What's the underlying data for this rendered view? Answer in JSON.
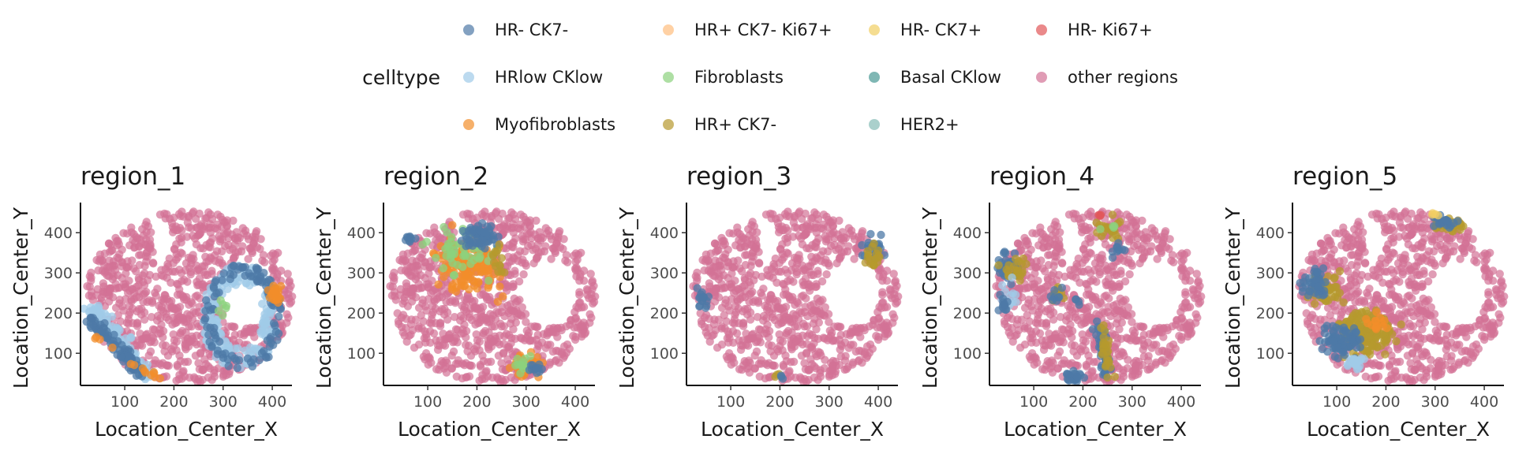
{
  "legend": {
    "title": "celltype",
    "items": [
      {
        "label": "HR- CK7-",
        "color": "#4E79A7"
      },
      {
        "label": "HR+ CK7- Ki67+",
        "color": "#FFBE7D"
      },
      {
        "label": "HR- CK7+",
        "color": "#F1CE63"
      },
      {
        "label": "HR- Ki67+",
        "color": "#E15759"
      },
      {
        "label": "HRlow CKlow",
        "color": "#A0CBE8"
      },
      {
        "label": "Fibroblasts",
        "color": "#8CD17D"
      },
      {
        "label": "Basal CKlow",
        "color": "#499894"
      },
      {
        "label": "other regions",
        "color": "#D37295"
      },
      {
        "label": "Myofibroblasts",
        "color": "#F28E2B"
      },
      {
        "label": "HR+ CK7-",
        "color": "#B6992D"
      },
      {
        "label": "HER2+",
        "color": "#86BCB6"
      }
    ]
  },
  "chart_data": [
    {
      "type": "scatter",
      "title": "region_1",
      "xlabel": "Location_Center_X",
      "ylabel": "Location_Center_Y",
      "xlim": [
        10,
        440
      ],
      "ylim": [
        20,
        475
      ],
      "xticks": [
        100,
        200,
        300,
        400
      ],
      "yticks": [
        100,
        200,
        300,
        400
      ],
      "background_celltype": "other regions",
      "clusters": [
        {
          "celltype": "HRlow CKlow",
          "shape": "ring",
          "cx": 335,
          "cy": 190,
          "rx": 78,
          "ry": 130,
          "inner": 0.6,
          "n": 200
        },
        {
          "celltype": "HR- CK7-",
          "shape": "ring",
          "cx": 340,
          "cy": 190,
          "rx": 80,
          "ry": 132,
          "inner": 0.75,
          "n": 110
        },
        {
          "celltype": "Myofibroblasts",
          "shape": "blob",
          "cx": 405,
          "cy": 250,
          "rx": 22,
          "ry": 40,
          "n": 22
        },
        {
          "celltype": "Fibroblasts",
          "shape": "blob",
          "cx": 300,
          "cy": 210,
          "rx": 22,
          "ry": 30,
          "n": 6
        },
        {
          "celltype": "HRlow CKlow",
          "shape": "band",
          "x0": 30,
          "y0": 220,
          "x1": 150,
          "y1": 40,
          "w": 28,
          "n": 110
        },
        {
          "celltype": "HR- CK7-",
          "shape": "band",
          "x0": 30,
          "y0": 190,
          "x1": 140,
          "y1": 40,
          "w": 20,
          "n": 80
        },
        {
          "celltype": "Myofibroblasts",
          "shape": "band",
          "x0": 40,
          "y0": 140,
          "x1": 170,
          "y1": 35,
          "w": 12,
          "n": 14
        }
      ]
    },
    {
      "type": "scatter",
      "title": "region_2",
      "xlabel": "Location_Center_X",
      "ylabel": "Location_Center_Y",
      "xlim": [
        10,
        440
      ],
      "ylim": [
        20,
        475
      ],
      "xticks": [
        100,
        200,
        300,
        400
      ],
      "yticks": [
        100,
        200,
        300,
        400
      ],
      "background_celltype": "other regions",
      "clusters": [
        {
          "celltype": "Myofibroblasts",
          "shape": "blob",
          "cx": 185,
          "cy": 320,
          "rx": 95,
          "ry": 110,
          "n": 150
        },
        {
          "celltype": "Fibroblasts",
          "shape": "blob",
          "cx": 170,
          "cy": 350,
          "rx": 90,
          "ry": 80,
          "n": 50
        },
        {
          "celltype": "HR- CK7-",
          "shape": "blob",
          "cx": 210,
          "cy": 390,
          "rx": 55,
          "ry": 50,
          "n": 60
        },
        {
          "celltype": "HR- CK7-",
          "shape": "blob",
          "cx": 60,
          "cy": 385,
          "rx": 22,
          "ry": 14,
          "n": 10
        },
        {
          "celltype": "HR+ CK7-",
          "shape": "blob",
          "cx": 240,
          "cy": 330,
          "rx": 25,
          "ry": 50,
          "n": 14
        },
        {
          "celltype": "Myofibroblasts",
          "shape": "blob",
          "cx": 300,
          "cy": 70,
          "rx": 45,
          "ry": 40,
          "n": 50
        },
        {
          "celltype": "Fibroblasts",
          "shape": "blob",
          "cx": 295,
          "cy": 75,
          "rx": 40,
          "ry": 35,
          "n": 14
        },
        {
          "celltype": "HR- CK7-",
          "shape": "blob",
          "cx": 320,
          "cy": 60,
          "rx": 30,
          "ry": 25,
          "n": 12
        }
      ]
    },
    {
      "type": "scatter",
      "title": "region_3",
      "xlabel": "Location_Center_X",
      "ylabel": "Location_Center_Y",
      "xlim": [
        10,
        440
      ],
      "ylim": [
        20,
        475
      ],
      "xticks": [
        100,
        200,
        300,
        400
      ],
      "yticks": [
        100,
        200,
        300,
        400
      ],
      "background_celltype": "other regions",
      "clusters": [
        {
          "celltype": "HR- CK7-",
          "shape": "blob",
          "cx": 390,
          "cy": 360,
          "rx": 30,
          "ry": 50,
          "n": 22
        },
        {
          "celltype": "HR+ CK7-",
          "shape": "blob",
          "cx": 395,
          "cy": 345,
          "rx": 25,
          "ry": 45,
          "n": 18
        },
        {
          "celltype": "HR- CK7-",
          "shape": "blob",
          "cx": 45,
          "cy": 235,
          "rx": 25,
          "ry": 30,
          "n": 16
        },
        {
          "celltype": "HR+ CK7-",
          "shape": "blob",
          "cx": 195,
          "cy": 42,
          "rx": 12,
          "ry": 10,
          "n": 3
        },
        {
          "celltype": "HR- CK7-",
          "shape": "blob",
          "cx": 205,
          "cy": 38,
          "rx": 10,
          "ry": 10,
          "n": 3
        }
      ]
    },
    {
      "type": "scatter",
      "title": "region_4",
      "xlabel": "Location_Center_X",
      "ylabel": "Location_Center_Y",
      "xlim": [
        10,
        440
      ],
      "ylim": [
        20,
        475
      ],
      "xticks": [
        100,
        200,
        300,
        400
      ],
      "yticks": [
        100,
        200,
        300,
        400
      ],
      "background_celltype": "other regions",
      "clusters": [
        {
          "celltype": "HR- CK7-",
          "shape": "blob",
          "cx": 55,
          "cy": 320,
          "rx": 40,
          "ry": 60,
          "n": 30
        },
        {
          "celltype": "HR+ CK7-",
          "shape": "blob",
          "cx": 60,
          "cy": 310,
          "rx": 40,
          "ry": 60,
          "n": 22
        },
        {
          "celltype": "HRlow CKlow",
          "shape": "blob",
          "cx": 45,
          "cy": 250,
          "rx": 25,
          "ry": 50,
          "n": 12
        },
        {
          "celltype": "HR- CK7-",
          "shape": "blob",
          "cx": 40,
          "cy": 225,
          "rx": 22,
          "ry": 30,
          "n": 12
        },
        {
          "celltype": "HR- CK7-",
          "shape": "band",
          "x0": 230,
          "y0": 180,
          "x1": 250,
          "y1": 40,
          "w": 18,
          "n": 45
        },
        {
          "celltype": "HR+ CK7-",
          "shape": "band",
          "x0": 235,
          "y0": 170,
          "x1": 255,
          "y1": 40,
          "w": 16,
          "n": 25
        },
        {
          "celltype": "HR- CK7-",
          "shape": "blob",
          "cx": 180,
          "cy": 40,
          "rx": 35,
          "ry": 20,
          "n": 22
        },
        {
          "celltype": "HR+ CK7-",
          "shape": "blob",
          "cx": 245,
          "cy": 410,
          "rx": 40,
          "ry": 40,
          "n": 20
        },
        {
          "celltype": "HR- CK7-",
          "shape": "blob",
          "cx": 270,
          "cy": 360,
          "rx": 20,
          "ry": 30,
          "n": 10
        },
        {
          "celltype": "Fibroblasts",
          "shape": "blob",
          "cx": 250,
          "cy": 420,
          "rx": 20,
          "ry": 20,
          "n": 4
        },
        {
          "celltype": "HR- Ki67+",
          "shape": "blob",
          "cx": 235,
          "cy": 445,
          "rx": 10,
          "ry": 5,
          "n": 3
        },
        {
          "celltype": "HR+ CK7-",
          "shape": "blob",
          "cx": 150,
          "cy": 250,
          "rx": 20,
          "ry": 40,
          "n": 10
        },
        {
          "celltype": "HR- CK7-",
          "shape": "blob",
          "cx": 145,
          "cy": 240,
          "rx": 15,
          "ry": 35,
          "n": 8
        },
        {
          "celltype": "HR- CK7-",
          "shape": "blob",
          "cx": 190,
          "cy": 230,
          "rx": 10,
          "ry": 15,
          "n": 4
        }
      ]
    },
    {
      "type": "scatter",
      "title": "region_5",
      "xlabel": "Location_Center_X",
      "ylabel": "Location_Center_Y",
      "xlim": [
        10,
        440
      ],
      "ylim": [
        20,
        475
      ],
      "xticks": [
        100,
        200,
        300,
        400
      ],
      "yticks": [
        100,
        200,
        300,
        400
      ],
      "background_celltype": "other regions",
      "clusters": [
        {
          "celltype": "HR+ CK7-",
          "shape": "blob",
          "cx": 165,
          "cy": 150,
          "rx": 80,
          "ry": 75,
          "n": 150
        },
        {
          "celltype": "HR- CK7-",
          "shape": "blob",
          "cx": 110,
          "cy": 130,
          "rx": 55,
          "ry": 60,
          "n": 80
        },
        {
          "celltype": "HR+ CK7-",
          "shape": "blob",
          "cx": 75,
          "cy": 260,
          "rx": 50,
          "ry": 55,
          "n": 60
        },
        {
          "celltype": "HR- CK7-",
          "shape": "blob",
          "cx": 55,
          "cy": 265,
          "rx": 40,
          "ry": 45,
          "n": 35
        },
        {
          "celltype": "HRlow CKlow",
          "shape": "blob",
          "cx": 140,
          "cy": 80,
          "rx": 30,
          "ry": 30,
          "n": 20
        },
        {
          "celltype": "Myofibroblasts",
          "shape": "blob",
          "cx": 180,
          "cy": 180,
          "rx": 40,
          "ry": 40,
          "n": 15
        },
        {
          "celltype": "HR+ CK7-",
          "shape": "blob",
          "cx": 330,
          "cy": 420,
          "rx": 45,
          "ry": 25,
          "n": 40
        },
        {
          "celltype": "HR- CK7-",
          "shape": "blob",
          "cx": 320,
          "cy": 425,
          "rx": 40,
          "ry": 22,
          "n": 20
        },
        {
          "celltype": "HR- CK7+",
          "shape": "blob",
          "cx": 300,
          "cy": 445,
          "rx": 15,
          "ry": 8,
          "n": 4
        },
        {
          "celltype": "HR- CK7-",
          "shape": "blob",
          "cx": 60,
          "cy": 300,
          "rx": 20,
          "ry": 20,
          "n": 8
        }
      ]
    }
  ]
}
